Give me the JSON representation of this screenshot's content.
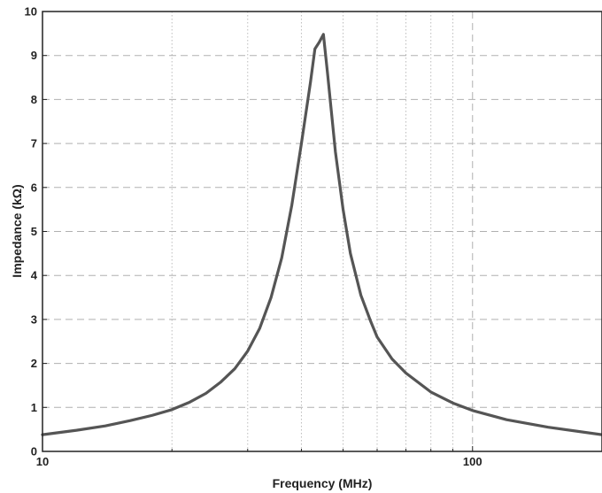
{
  "chart_data": {
    "type": "line",
    "title": "",
    "xlabel": "Frequency (MHz)",
    "ylabel": "Impedance (kΩ)",
    "x_scale": "log",
    "xlim": [
      10,
      200
    ],
    "ylim": [
      0,
      10
    ],
    "x_ticks": [
      {
        "value": 10,
        "label": "10"
      },
      {
        "value": 100,
        "label": "100"
      }
    ],
    "x_minor_ticks": [
      20,
      30,
      40,
      50,
      60,
      70,
      80,
      90
    ],
    "y_ticks": [
      0,
      1,
      2,
      3,
      4,
      5,
      6,
      7,
      8,
      9,
      10
    ],
    "grid": true,
    "line_color": "#555555",
    "series": [
      {
        "x": [
          10,
          12,
          14,
          16,
          18,
          20,
          22,
          24,
          26,
          28,
          30,
          32,
          34,
          36,
          38,
          40,
          42,
          43,
          44,
          45,
          46,
          48,
          50,
          52,
          55,
          58,
          60,
          65,
          70,
          80,
          90,
          100,
          120,
          150,
          200
        ],
        "y": [
          0.38,
          0.48,
          0.58,
          0.7,
          0.82,
          0.95,
          1.12,
          1.32,
          1.58,
          1.88,
          2.28,
          2.8,
          3.5,
          4.4,
          5.6,
          7.0,
          8.4,
          9.15,
          9.3,
          9.48,
          8.6,
          6.8,
          5.5,
          4.5,
          3.55,
          2.95,
          2.6,
          2.1,
          1.78,
          1.35,
          1.1,
          0.93,
          0.72,
          0.55,
          0.38
        ]
      }
    ]
  }
}
